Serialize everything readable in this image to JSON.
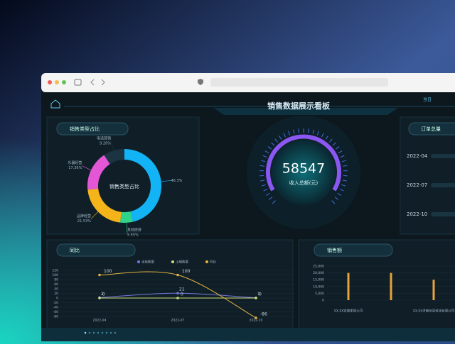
{
  "header": {
    "title": "销售数据展示看板",
    "tab": "当日"
  },
  "sales_type": {
    "title": "销售类型占比",
    "center_label": "销售类型占比",
    "slices": [
      {
        "value": 46.3,
        "label": "46.3%",
        "color": "#12b4f6"
      },
      {
        "name": "其他经营",
        "value": 5.55,
        "label": "5.55%",
        "color": "#2fd48b"
      },
      {
        "name": "品牌经营",
        "value": 21.53,
        "label": "21.53%",
        "color": "#f5b41a"
      },
      {
        "name": "乐器经营",
        "value": 17.36,
        "label": "17.36%",
        "color": "#e356d6"
      },
      {
        "name": "电话营销",
        "value": 9.26,
        "label": "9.26%",
        "color": "#1b3442"
      }
    ]
  },
  "gauge": {
    "value": 58547,
    "label": "收入总额(元)"
  },
  "orders": {
    "title": "订单总量",
    "dates": [
      "2022-04",
      "2022-07",
      "2022-10"
    ]
  },
  "comparison": {
    "title": "同比",
    "categories": [
      "2022-04",
      "2022-07",
      "2022-10"
    ],
    "ylim": [
      -80,
      120
    ],
    "yticks": [
      120,
      100,
      80,
      60,
      40,
      20,
      0,
      -20,
      -40,
      -60,
      -80
    ],
    "series": [
      {
        "name": "当前数量",
        "color": "#7279dc",
        "values": [
          2,
          21,
          1
        ]
      },
      {
        "name": "上期数量",
        "color": "#cfe07a",
        "values": [
          0,
          0,
          0
        ]
      },
      {
        "name": "同比",
        "color": "#e3b341",
        "values": [
          100,
          100,
          -86
        ]
      }
    ]
  },
  "sales": {
    "title": "销售额",
    "categories": [
      "XX-XX宏盛家居公司",
      null,
      "XX-XX济南信息科技有限公司"
    ],
    "values": [
      20000,
      20000,
      15000
    ],
    "color": "#e8a33a",
    "ylim": [
      0,
      25000
    ],
    "yticks": [
      0,
      {
        "value": 5000,
        "label": "5,000"
      },
      {
        "value": 10000,
        "label": "10,000"
      },
      {
        "value": 15000,
        "label": "15,000"
      },
      {
        "value": 20000,
        "label": "20,000"
      },
      {
        "value": 25000,
        "label": "25,000"
      }
    ]
  }
}
